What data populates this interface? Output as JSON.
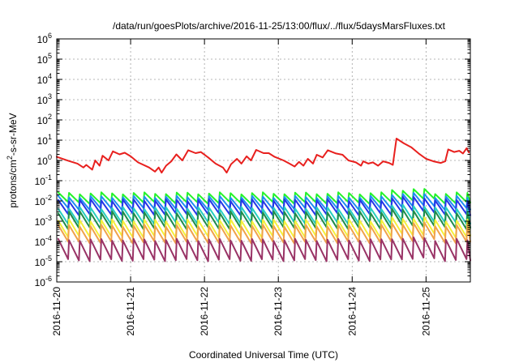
{
  "chart_data": {
    "type": "line",
    "title": "/data/run/goesPlots/archive/2016-11-25/13:00/flux/../flux/5daysMarsFluxes.txt",
    "xlabel": "Coordinated Universal Time (UTC)",
    "ylabel": "protons/cm²-s-sr-MeV",
    "ylabel_parts": {
      "pre": "protons/cm",
      "sup": "2",
      "post": "-s-sr-MeV"
    },
    "yscale": "log",
    "ylim": [
      1e-06,
      1000000.0
    ],
    "xlim_days": [
      0,
      5.6
    ],
    "x_tick_labels": [
      "2016-11-20",
      "2016-11-21",
      "2016-11-22",
      "2016-11-23",
      "2016-11-24",
      "2016-11-25"
    ],
    "y_tick_exponents": [
      -6,
      -5,
      -4,
      -3,
      -2,
      -1,
      0,
      1,
      2,
      3,
      4,
      5,
      6
    ],
    "grid": true,
    "legend": "none",
    "sawtooth_period_days": 0.1458,
    "series": [
      {
        "color": "#e8201e",
        "points": [
          [
            0,
            1.5
          ],
          [
            0.16,
            0.95
          ],
          [
            0.28,
            0.7
          ],
          [
            0.36,
            0.45
          ],
          [
            0.4,
            0.6
          ],
          [
            0.48,
            0.35
          ],
          [
            0.52,
            1.0
          ],
          [
            0.58,
            0.55
          ],
          [
            0.62,
            1.7
          ],
          [
            0.7,
            1.0
          ],
          [
            0.76,
            2.8
          ],
          [
            0.85,
            2.0
          ],
          [
            0.92,
            2.4
          ],
          [
            1.0,
            1.6
          ],
          [
            1.1,
            0.8
          ],
          [
            1.25,
            0.45
          ],
          [
            1.33,
            0.28
          ],
          [
            1.38,
            0.45
          ],
          [
            1.42,
            0.25
          ],
          [
            1.48,
            0.55
          ],
          [
            1.55,
            0.9
          ],
          [
            1.62,
            2.0
          ],
          [
            1.7,
            1.0
          ],
          [
            1.78,
            3.2
          ],
          [
            1.88,
            2.3
          ],
          [
            1.95,
            2.6
          ],
          [
            2.05,
            1.4
          ],
          [
            2.15,
            0.7
          ],
          [
            2.25,
            0.45
          ],
          [
            2.3,
            0.25
          ],
          [
            2.36,
            0.65
          ],
          [
            2.44,
            1.2
          ],
          [
            2.5,
            0.7
          ],
          [
            2.57,
            1.6
          ],
          [
            2.63,
            1.0
          ],
          [
            2.7,
            3.3
          ],
          [
            2.8,
            2.3
          ],
          [
            2.87,
            2.3
          ],
          [
            2.95,
            1.5
          ],
          [
            3.07,
            1.0
          ],
          [
            3.15,
            0.7
          ],
          [
            3.22,
            0.5
          ],
          [
            3.28,
            0.85
          ],
          [
            3.34,
            0.55
          ],
          [
            3.4,
            1.2
          ],
          [
            3.47,
            0.7
          ],
          [
            3.52,
            1.9
          ],
          [
            3.6,
            1.4
          ],
          [
            3.67,
            3.2
          ],
          [
            3.78,
            2.2
          ],
          [
            3.87,
            1.9
          ],
          [
            3.95,
            1.0
          ],
          [
            4.05,
            0.8
          ],
          [
            4.12,
            0.55
          ],
          [
            4.15,
            0.9
          ],
          [
            4.22,
            0.7
          ],
          [
            4.28,
            0.8
          ],
          [
            4.35,
            0.55
          ],
          [
            4.42,
            0.9
          ],
          [
            4.5,
            0.75
          ],
          [
            4.55,
            0.6
          ],
          [
            4.6,
            12
          ],
          [
            4.7,
            7
          ],
          [
            4.8,
            4.5
          ],
          [
            4.9,
            2.2
          ],
          [
            5.0,
            1.2
          ],
          [
            5.1,
            0.9
          ],
          [
            5.2,
            0.75
          ],
          [
            5.26,
            0.9
          ],
          [
            5.3,
            3.5
          ],
          [
            5.38,
            2.6
          ],
          [
            5.45,
            3.0
          ],
          [
            5.5,
            2.2
          ],
          [
            5.55,
            4.0
          ],
          [
            5.58,
            2.5
          ]
        ]
      },
      {
        "color": "#25f32a",
        "base_low": 0.008,
        "base_high": 0.024,
        "bump": {
          "from_day": 4.4,
          "to_day": 5.0,
          "factor": 1.5
        }
      },
      {
        "color": "#1e8ff2",
        "base_low": 0.004,
        "base_high": 0.016,
        "bump": {
          "from_day": 4.4,
          "to_day": 5.0,
          "factor": 1.4
        }
      },
      {
        "color": "#2535e6",
        "base_low": 0.0022,
        "base_high": 0.011,
        "bump": {
          "from_day": 4.4,
          "to_day": 5.0,
          "factor": 1.35
        }
      },
      {
        "color": "#26cfc2",
        "base_low": 0.0008,
        "base_high": 0.0045,
        "bump": {
          "from_day": 4.4,
          "to_day": 5.0,
          "factor": 1.3
        }
      },
      {
        "color": "#1f8c4a",
        "base_low": 0.00045,
        "base_high": 0.0028,
        "bump": {
          "from_day": 4.4,
          "to_day": 5.0,
          "factor": 1.3
        }
      },
      {
        "color": "#f5ef3b",
        "base_low": 0.00017,
        "base_high": 0.0011,
        "bump": {
          "from_day": 4.4,
          "to_day": 5.0,
          "factor": 1.3
        }
      },
      {
        "color": "#f0a24a",
        "base_low": 9e-05,
        "base_high": 0.0006,
        "bump": {
          "from_day": 4.4,
          "to_day": 5.0,
          "factor": 1.3
        }
      },
      {
        "color": "#993366",
        "base_low": 1.2e-05,
        "base_high": 0.00012,
        "bump": {
          "from_day": 4.4,
          "to_day": 5.0,
          "factor": 1.2
        }
      }
    ]
  }
}
